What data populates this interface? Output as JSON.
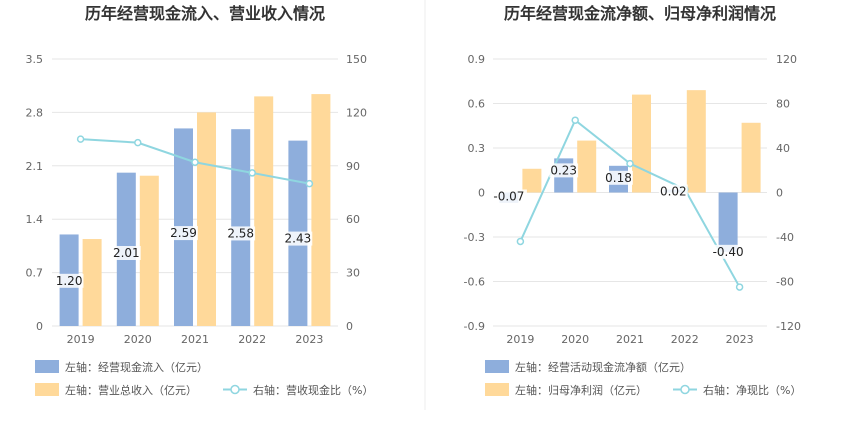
{
  "chart_data": [
    {
      "type": "bar",
      "title": "历年经营现金流入、营业收入情况",
      "categories": [
        "2019",
        "2020",
        "2021",
        "2022",
        "2023"
      ],
      "left_axis": {
        "ticks": [
          "0",
          "0.7",
          "1.4",
          "2.1",
          "2.8",
          "3.5"
        ],
        "range": [
          0,
          3.5
        ]
      },
      "right_axis": {
        "ticks": [
          "0",
          "30",
          "60",
          "90",
          "120",
          "150"
        ],
        "range": [
          0,
          150
        ]
      },
      "series": [
        {
          "name": "左轴：经营现金流入（亿元）",
          "type": "bar",
          "axis": "left",
          "color": "#8eaedc",
          "values": [
            1.2,
            2.01,
            2.59,
            2.58,
            2.43
          ],
          "labels": [
            "1.20",
            "2.01",
            "2.59",
            "2.58",
            "2.43"
          ]
        },
        {
          "name": "左轴：营业总收入（亿元）",
          "type": "bar",
          "axis": "left",
          "color": "#ffd99a",
          "values": [
            1.14,
            1.97,
            2.8,
            3.01,
            3.04
          ]
        },
        {
          "name": "右轴：营收现金比（%）",
          "type": "line",
          "axis": "right",
          "color": "#8fd6e0",
          "values": [
            105,
            103,
            92,
            86,
            80
          ]
        }
      ],
      "grid": true,
      "legend_position": "bottom"
    },
    {
      "type": "bar",
      "title": "历年经营现金流净额、归母净利润情况",
      "categories": [
        "2019",
        "2020",
        "2021",
        "2022",
        "2023"
      ],
      "left_axis": {
        "ticks": [
          "-0.9",
          "-0.6",
          "-0.3",
          "0",
          "0.3",
          "0.6",
          "0.9"
        ],
        "range": [
          -0.9,
          0.9
        ]
      },
      "right_axis": {
        "ticks": [
          "-120",
          "-80",
          "-40",
          "0",
          "40",
          "80",
          "120"
        ],
        "range": [
          -120,
          120
        ]
      },
      "series": [
        {
          "name": "左轴：经营活动现金流净额（亿元）",
          "type": "bar",
          "axis": "left",
          "color": "#8eaedc",
          "values": [
            -0.07,
            0.23,
            0.18,
            0.02,
            -0.4
          ],
          "labels": [
            "-0.07",
            "0.23",
            "0.18",
            "0.02",
            "-0.40"
          ]
        },
        {
          "name": "左轴：归母净利润（亿元）",
          "type": "bar",
          "axis": "left",
          "color": "#ffd99a",
          "values": [
            0.16,
            0.35,
            0.66,
            0.69,
            0.47
          ]
        },
        {
          "name": "右轴：净现比（%）",
          "type": "line",
          "axis": "right",
          "color": "#8fd6e0",
          "values": [
            -44,
            65,
            26,
            3,
            -85
          ]
        }
      ],
      "grid": true,
      "legend_position": "bottom"
    }
  ]
}
